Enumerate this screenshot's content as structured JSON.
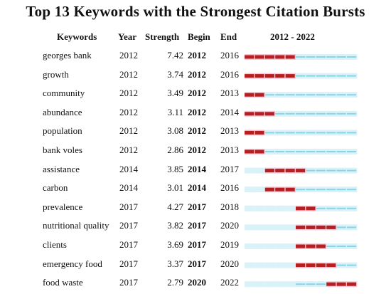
{
  "title": "Top 13 Keywords with the Strongest Citation Bursts",
  "headers": {
    "keywords": "Keywords",
    "year": "Year",
    "strength": "Strength",
    "begin": "Begin",
    "end": "End",
    "range": "2012 - 2022"
  },
  "chart_data": {
    "type": "table",
    "timeline": {
      "start": 2012,
      "end": 2022
    },
    "colors": {
      "base": "#8dd3e6",
      "burst": "#b51f1f",
      "burst_bg": "#f6c6d8",
      "inactive_bg": "#d9f2f7",
      "strength_label": "#333333"
    },
    "rows": [
      {
        "keyword": "georges bank",
        "year": "2012",
        "strength": "7.42",
        "begin": "2012",
        "end": "2016"
      },
      {
        "keyword": "growth",
        "year": "2012",
        "strength": "3.74",
        "begin": "2012",
        "end": "2016"
      },
      {
        "keyword": "community",
        "year": "2012",
        "strength": "3.49",
        "begin": "2012",
        "end": "2013"
      },
      {
        "keyword": "abundance",
        "year": "2012",
        "strength": "3.11",
        "begin": "2012",
        "end": "2014"
      },
      {
        "keyword": "population",
        "year": "2012",
        "strength": "3.08",
        "begin": "2012",
        "end": "2013"
      },
      {
        "keyword": "bank voles",
        "year": "2012",
        "strength": "2.86",
        "begin": "2012",
        "end": "2013"
      },
      {
        "keyword": "assistance",
        "year": "2014",
        "strength": "3.85",
        "begin": "2014",
        "end": "2017"
      },
      {
        "keyword": "carbon",
        "year": "2014",
        "strength": "3.01",
        "begin": "2014",
        "end": "2016"
      },
      {
        "keyword": "prevalence",
        "year": "2017",
        "strength": "4.27",
        "begin": "2017",
        "end": "2018"
      },
      {
        "keyword": "nutritional quality",
        "year": "2017",
        "strength": "3.82",
        "begin": "2017",
        "end": "2020"
      },
      {
        "keyword": "clients",
        "year": "2017",
        "strength": "3.69",
        "begin": "2017",
        "end": "2019"
      },
      {
        "keyword": "emergency food",
        "year": "2017",
        "strength": "3.37",
        "begin": "2017",
        "end": "2020"
      },
      {
        "keyword": "food waste",
        "year": "2017",
        "strength": "2.79",
        "begin": "2020",
        "end": "2022"
      }
    ]
  }
}
